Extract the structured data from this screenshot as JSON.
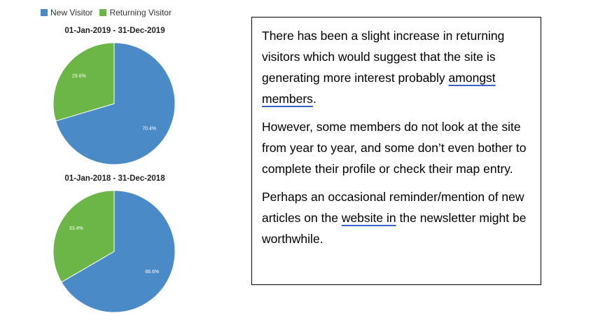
{
  "legend": {
    "items": [
      {
        "label": "New Visitor",
        "color": "#4a8ac7"
      },
      {
        "label": "Returning Visitor",
        "color": "#6cb648"
      }
    ]
  },
  "chart_data": [
    {
      "type": "pie",
      "title": "01-Jan-2019 - 31-Dec-2019",
      "slices": [
        {
          "name": "New Visitor",
          "value": 70.4,
          "label": "70.4%",
          "color": "#4a8ac7"
        },
        {
          "name": "Returning Visitor",
          "value": 29.6,
          "label": "29.6%",
          "color": "#6cb648"
        }
      ],
      "legend": "top-left"
    },
    {
      "type": "pie",
      "title": "01-Jan-2018 - 31-Dec-2018",
      "slices": [
        {
          "name": "New Visitor",
          "value": 66.6,
          "label": "66.6%",
          "color": "#4a8ac7"
        },
        {
          "name": "Returning Visitor",
          "value": 33.4,
          "label": "33.4%",
          "color": "#6cb648"
        }
      ],
      "legend": "top-left"
    }
  ],
  "note": {
    "p1_before": "There has been a slight increase in returning visitors which would suggest that the site is generating more interest probably ",
    "p1_underlined": "amongst  members",
    "p1_after": ".",
    "p2": "However, some members do not look at the site from year to year, and some don’t even bother to complete their profile or check their map entry.",
    "p3_before": "Perhaps an occasional reminder/mention of new articles on the ",
    "p3_underlined": "website  in",
    "p3_after": " the newsletter might be worthwhile."
  }
}
